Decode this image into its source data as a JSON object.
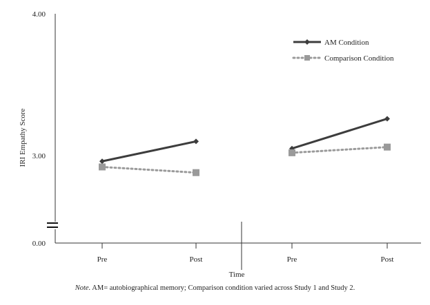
{
  "chart_data": {
    "type": "line",
    "ylabel": "IRI Empathy Score",
    "xlabel": "Time",
    "y_ticks": [
      "4.00",
      "3.00",
      "0.00"
    ],
    "axis_break": true,
    "categories": [
      "Pre",
      "Post",
      "Pre",
      "Post"
    ],
    "panels": [
      {
        "x": [
          "Pre",
          "Post"
        ],
        "series": [
          {
            "name": "AM Condition",
            "values": [
              2.96,
              3.1
            ]
          },
          {
            "name": "Comparison Condition",
            "values": [
              2.92,
              2.88
            ]
          }
        ]
      },
      {
        "x": [
          "Pre",
          "Post"
        ],
        "series": [
          {
            "name": "AM Condition",
            "values": [
              3.05,
              3.26
            ]
          },
          {
            "name": "Comparison Condition",
            "values": [
              3.02,
              3.06
            ]
          }
        ]
      }
    ],
    "legend": {
      "placement": "top-right",
      "entries": [
        "AM Condition",
        "Comparison Condition"
      ]
    },
    "colors": {
      "am": "#3d3d3d",
      "comparison": "#9a9a9a"
    },
    "grid": false
  },
  "note": {
    "prefix": "Note.",
    "text": "AM= autobiographical memory; Comparison condition varied across Study 1 and Study 2."
  }
}
